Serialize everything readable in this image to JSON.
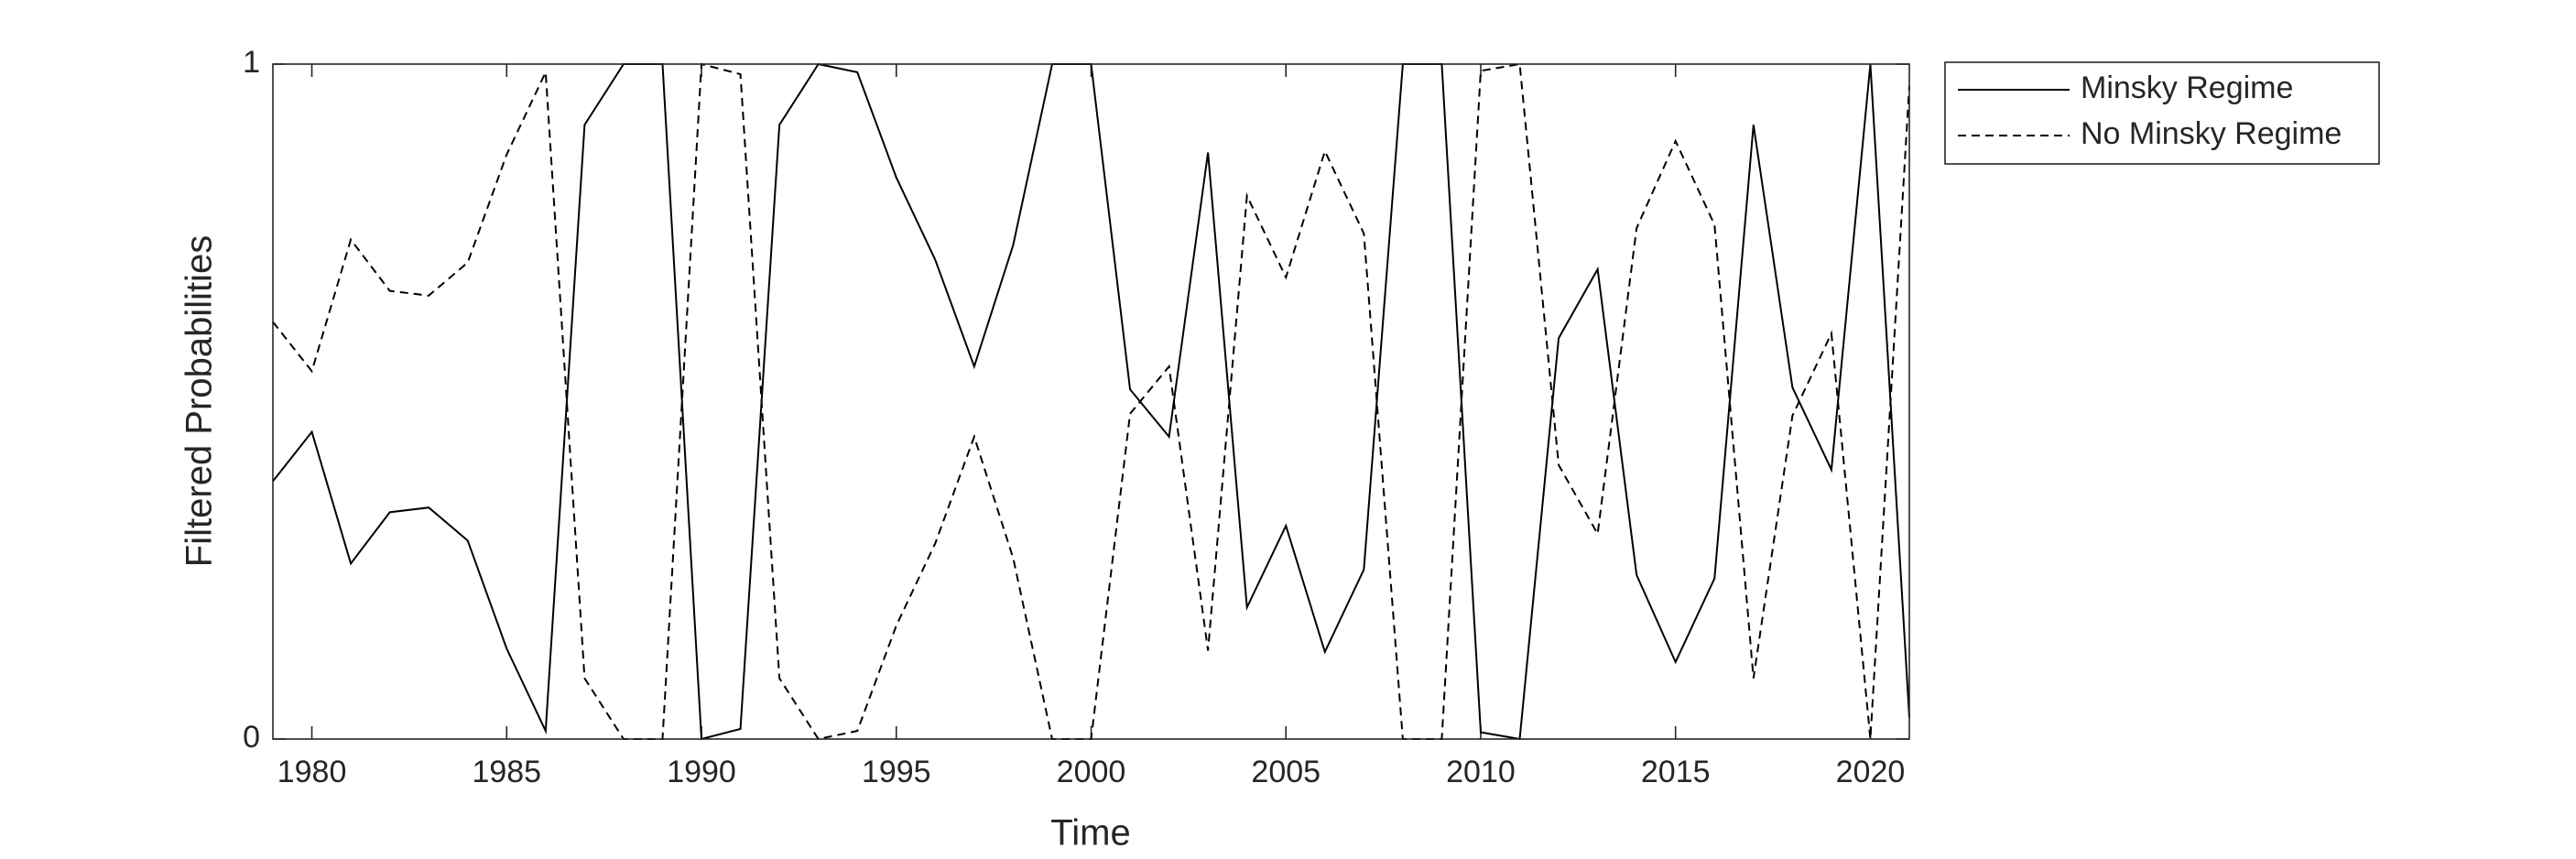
{
  "chart_data": {
    "type": "line",
    "xlabel": "Time",
    "ylabel": "Filtered Probabilities",
    "x": [
      1979,
      1980,
      1981,
      1982,
      1983,
      1984,
      1985,
      1986,
      1987,
      1988,
      1989,
      1990,
      1991,
      1992,
      1993,
      1994,
      1995,
      1996,
      1997,
      1998,
      1999,
      2000,
      2001,
      2002,
      2003,
      2004,
      2005,
      2006,
      2007,
      2008,
      2009,
      2010,
      2011,
      2012,
      2013,
      2014,
      2015,
      2016,
      2017,
      2018,
      2019,
      2020,
      2021
    ],
    "series": [
      {
        "name": "Minsky Regime",
        "color": "#000000",
        "dash": "solid",
        "values": [
          0.382,
          0.455,
          0.26,
          0.336,
          0.343,
          0.294,
          0.134,
          0.012,
          0.91,
          1,
          1,
          0,
          0.015,
          0.91,
          1,
          0.988,
          0.832,
          0.71,
          0.552,
          0.732,
          1,
          1,
          0.518,
          0.448,
          0.869,
          0.195,
          0.316,
          0.129,
          0.251,
          1,
          1,
          0.01,
          0,
          0.594,
          0.696,
          0.243,
          0.114,
          0.238,
          0.91,
          0.521,
          0.399,
          1,
          0.032
        ]
      },
      {
        "name": "No Minsky Regime",
        "color": "#000000",
        "dash": "dashed",
        "values": [
          0.618,
          0.545,
          0.74,
          0.664,
          0.657,
          0.706,
          0.866,
          0.988,
          0.09,
          0,
          0,
          1,
          0.985,
          0.09,
          0,
          0.012,
          0.168,
          0.29,
          0.448,
          0.268,
          0,
          0,
          0.482,
          0.552,
          0.131,
          0.805,
          0.684,
          0.871,
          0.749,
          0,
          0,
          0.99,
          1,
          0.406,
          0.304,
          0.757,
          0.886,
          0.762,
          0.09,
          0.479,
          0.601,
          0,
          0.968
        ]
      }
    ],
    "xlim": [
      1979,
      2021
    ],
    "xticks": [
      1980,
      1985,
      1990,
      1995,
      2000,
      2005,
      2010,
      2015,
      2020
    ],
    "ylim": [
      0,
      1
    ],
    "yticks": [
      0,
      1
    ],
    "legend": "outside-top-right"
  }
}
